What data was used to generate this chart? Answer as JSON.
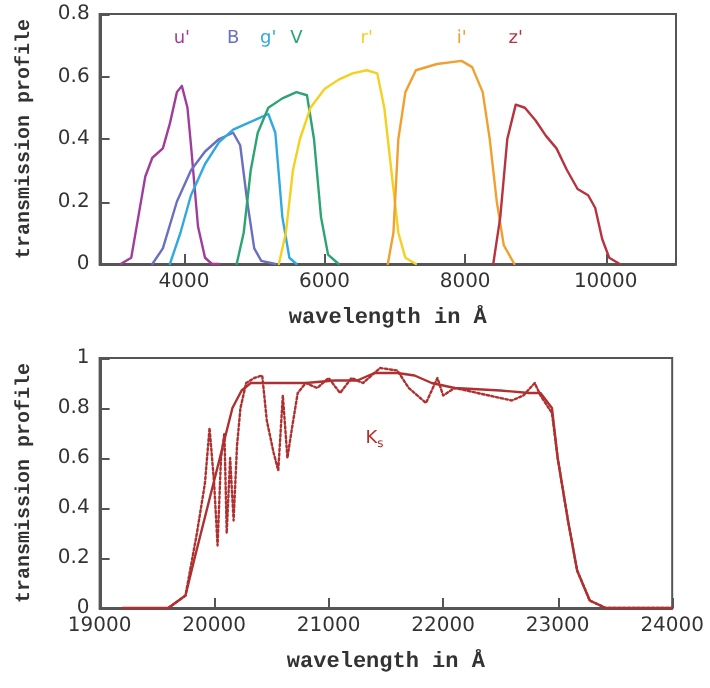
{
  "chart_data": [
    {
      "type": "line",
      "xlabel": "wavelength in Å",
      "ylabel": "transmission profile",
      "xlim": [
        2800,
        11000
      ],
      "xticks": [
        4000,
        6000,
        8000,
        10000
      ],
      "ylim": [
        0,
        0.8
      ],
      "yticks": [
        0,
        0.2,
        0.4,
        0.6,
        0.8
      ],
      "grid": false,
      "legend": false,
      "marker": "none",
      "line_style": "solid",
      "series": [
        {
          "name": "u'",
          "color": "#a03d9c",
          "x": [
            3100,
            3250,
            3350,
            3450,
            3550,
            3700,
            3800,
            3900,
            3970,
            4050,
            4100,
            4200,
            4300,
            4400,
            4500
          ],
          "values": [
            0,
            0.02,
            0.15,
            0.28,
            0.34,
            0.37,
            0.45,
            0.55,
            0.57,
            0.5,
            0.38,
            0.12,
            0.02,
            0,
            0
          ]
        },
        {
          "name": "B",
          "color": "#6a6fc0",
          "x": [
            3550,
            3700,
            3900,
            4100,
            4300,
            4500,
            4700,
            4800,
            4900,
            5000,
            5100,
            5300
          ],
          "values": [
            0,
            0.05,
            0.2,
            0.3,
            0.36,
            0.4,
            0.42,
            0.38,
            0.2,
            0.05,
            0.01,
            0
          ]
        },
        {
          "name": "g'",
          "color": "#30a8e0",
          "x": [
            3800,
            3950,
            4100,
            4300,
            4500,
            4700,
            4900,
            5100,
            5200,
            5300,
            5400,
            5500,
            5600
          ],
          "values": [
            0,
            0.1,
            0.22,
            0.32,
            0.39,
            0.43,
            0.45,
            0.47,
            0.48,
            0.42,
            0.15,
            0.02,
            0
          ]
        },
        {
          "name": "V",
          "color": "#2aa572",
          "x": [
            4750,
            4850,
            4950,
            5050,
            5200,
            5400,
            5600,
            5750,
            5850,
            5950,
            6050,
            6200
          ],
          "values": [
            0,
            0.1,
            0.3,
            0.42,
            0.5,
            0.53,
            0.55,
            0.54,
            0.4,
            0.15,
            0.03,
            0
          ]
        },
        {
          "name": "r'",
          "color": "#f5d020",
          "x": [
            5350,
            5450,
            5550,
            5650,
            5800,
            6000,
            6200,
            6400,
            6600,
            6750,
            6850,
            6950,
            7050,
            7150,
            7300
          ],
          "values": [
            0,
            0.1,
            0.3,
            0.4,
            0.5,
            0.56,
            0.59,
            0.61,
            0.62,
            0.61,
            0.5,
            0.3,
            0.1,
            0.02,
            0
          ]
        },
        {
          "name": "i'",
          "color": "#f0a030",
          "x": [
            6900,
            6980,
            7050,
            7150,
            7300,
            7600,
            7950,
            8100,
            8250,
            8350,
            8450,
            8550,
            8700
          ],
          "values": [
            0,
            0.1,
            0.4,
            0.55,
            0.62,
            0.64,
            0.65,
            0.63,
            0.55,
            0.4,
            0.2,
            0.06,
            0
          ]
        },
        {
          "name": "z'",
          "color": "#b8333f",
          "x": [
            8400,
            8500,
            8600,
            8720,
            8850,
            9000,
            9150,
            9300,
            9450,
            9600,
            9750,
            9850,
            9950,
            10050,
            10200
          ],
          "values": [
            0,
            0.15,
            0.4,
            0.51,
            0.5,
            0.46,
            0.41,
            0.37,
            0.3,
            0.24,
            0.22,
            0.18,
            0.08,
            0.02,
            0
          ]
        }
      ]
    },
    {
      "type": "line",
      "xlabel": "wavelength in Å",
      "ylabel": "transmission profile",
      "xlim": [
        19000,
        24000
      ],
      "xticks": [
        19000,
        20000,
        21000,
        22000,
        23000,
        24000
      ],
      "ylim": [
        0,
        1
      ],
      "yticks": [
        0,
        0.2,
        0.4,
        0.6,
        0.8,
        1
      ],
      "grid": false,
      "legend": false,
      "marker": "none",
      "series": [
        {
          "name": "K$_{s}$",
          "color": "#b03030",
          "line_style": "solid",
          "x": [
            19200,
            19600,
            19750,
            19830,
            19940,
            20050,
            20160,
            20240,
            20320,
            20800,
            21050,
            21250,
            21400,
            21600,
            21750,
            21900,
            22100,
            22500,
            22750,
            22850,
            22950,
            23000,
            23090,
            23170,
            23280,
            23420,
            24000
          ],
          "values": [
            0,
            0,
            0.05,
            0.2,
            0.4,
            0.6,
            0.8,
            0.87,
            0.9,
            0.9,
            0.91,
            0.91,
            0.94,
            0.94,
            0.93,
            0.9,
            0.88,
            0.87,
            0.86,
            0.86,
            0.8,
            0.6,
            0.35,
            0.15,
            0.03,
            0,
            0
          ]
        },
        {
          "color": "#b03030",
          "line_style": "dotted",
          "x": [
            19600,
            19750,
            19850,
            19920,
            19960,
            20000,
            20030,
            20060,
            20090,
            20110,
            20140,
            20170,
            20200,
            20230,
            20280,
            20350,
            20420,
            20460,
            20520,
            20560,
            20600,
            20640,
            20680,
            20730,
            20800,
            20900,
            21000,
            21100,
            21200,
            21300,
            21450,
            21600,
            21700,
            21850,
            21950,
            22000,
            22100,
            22300,
            22600,
            22700,
            22800,
            22850,
            22950,
            23000,
            23090,
            23170,
            23280,
            23420,
            24000
          ],
          "values": [
            0,
            0.05,
            0.3,
            0.5,
            0.72,
            0.5,
            0.25,
            0.6,
            0.7,
            0.3,
            0.6,
            0.35,
            0.65,
            0.8,
            0.9,
            0.92,
            0.93,
            0.75,
            0.62,
            0.55,
            0.85,
            0.6,
            0.72,
            0.86,
            0.9,
            0.88,
            0.92,
            0.86,
            0.92,
            0.9,
            0.96,
            0.95,
            0.88,
            0.82,
            0.92,
            0.85,
            0.88,
            0.86,
            0.83,
            0.85,
            0.9,
            0.85,
            0.78,
            0.6,
            0.35,
            0.15,
            0.03,
            0,
            0
          ]
        }
      ]
    }
  ]
}
